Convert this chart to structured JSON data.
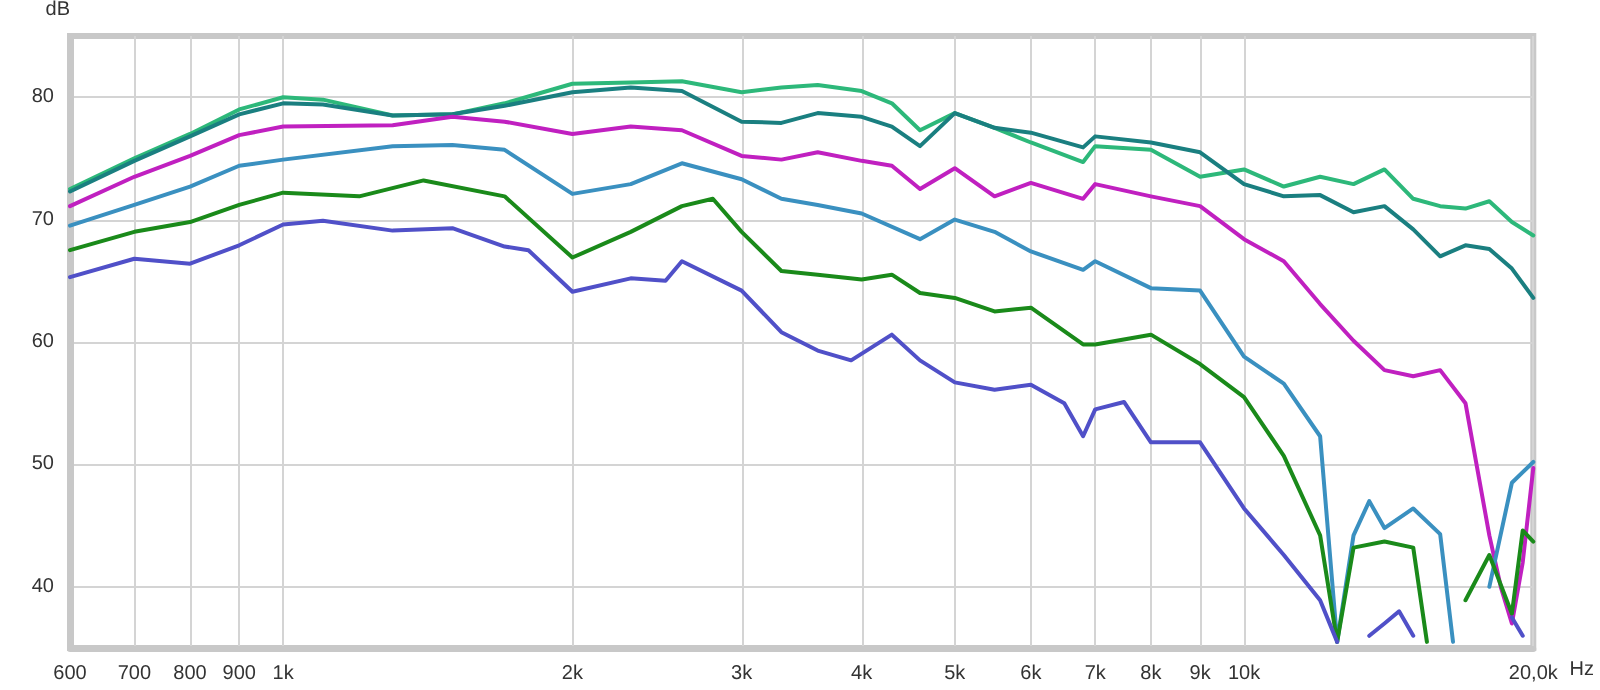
{
  "chart_data": {
    "type": "line",
    "ylabel": "dB",
    "xlabel": "Hz",
    "log": "x",
    "grid": true,
    "marker": "none",
    "line_style": "solid",
    "xlim": [
      600,
      20000
    ],
    "ylim": [
      35,
      85
    ],
    "xticks": [
      600,
      700,
      800,
      900,
      {
        "value": 1000,
        "label": "1k"
      },
      {
        "value": 2000,
        "label": "2k"
      },
      {
        "value": 3000,
        "label": "3k"
      },
      {
        "value": 4000,
        "label": "4k"
      },
      {
        "value": 5000,
        "label": "5k"
      },
      {
        "value": 6000,
        "label": "6k"
      },
      {
        "value": 7000,
        "label": "7k"
      },
      {
        "value": 8000,
        "label": "8k"
      },
      {
        "value": 9000,
        "label": "9k"
      },
      {
        "value": 10000,
        "label": "10k"
      },
      {
        "value": 20000,
        "label": "20,0k"
      }
    ],
    "yticks": [
      40,
      50,
      60,
      70,
      80
    ],
    "series": [
      {
        "color": "#2db87a",
        "x": [
          600,
          700,
          800,
          900,
          1000,
          1100,
          1300,
          1500,
          1700,
          2000,
          2300,
          2600,
          3000,
          3300,
          3600,
          4000,
          4300,
          4600,
          5000,
          5500,
          6000,
          6800,
          7000,
          8000,
          9000,
          10000,
          11000,
          12000,
          13000,
          14000,
          15000,
          16000,
          17000,
          18000,
          19000,
          20000
        ],
        "values": [
          72.5,
          75,
          77,
          79,
          80,
          79.8,
          78.5,
          78.6,
          79.5,
          81.1,
          81.2,
          81.3,
          80.4,
          80.8,
          81,
          80.5,
          79.5,
          77.3,
          78.7,
          77.5,
          76.3,
          74.7,
          76,
          75.7,
          73.5,
          74.1,
          72.7,
          73.5,
          72.9,
          74.1,
          71.7,
          71.1,
          70.9,
          71.5,
          69.8,
          68.7
        ]
      },
      {
        "color": "#1a7f80",
        "x": [
          600,
          700,
          800,
          900,
          1000,
          1100,
          1300,
          1500,
          1700,
          2000,
          2300,
          2600,
          3000,
          3300,
          3600,
          4000,
          4300,
          4600,
          5000,
          5500,
          6000,
          6800,
          7000,
          8000,
          9000,
          10000,
          11000,
          12000,
          13000,
          14000,
          15000,
          16000,
          17000,
          18000,
          19000,
          20000
        ],
        "values": [
          72.3,
          74.8,
          76.8,
          78.6,
          79.5,
          79.4,
          78.5,
          78.6,
          79.3,
          80.4,
          80.8,
          80.5,
          78,
          77.9,
          78.7,
          78.4,
          77.6,
          76,
          78.7,
          77.5,
          77.1,
          75.9,
          76.8,
          76.3,
          75.5,
          72.9,
          71.9,
          72,
          70.6,
          71.1,
          69.2,
          67,
          67.9,
          67.6,
          66,
          63.6
        ]
      },
      {
        "color": "#c020c0",
        "x": [
          600,
          700,
          800,
          900,
          1000,
          1300,
          1500,
          1700,
          2000,
          2300,
          2600,
          3000,
          3300,
          3600,
          4000,
          4300,
          4600,
          5000,
          5500,
          6000,
          6800,
          7000,
          8000,
          9000,
          10000,
          11000,
          12000,
          13000,
          14000,
          15000,
          16000,
          17000,
          18000,
          18500,
          19000,
          19500,
          20000
        ],
        "values": [
          71.1,
          73.5,
          75.2,
          76.9,
          77.6,
          77.7,
          78.4,
          78,
          77,
          77.6,
          77.3,
          75.2,
          74.9,
          75.5,
          74.8,
          74.4,
          72.5,
          74.2,
          71.9,
          73,
          71.7,
          72.9,
          71.9,
          71.1,
          68.4,
          66.6,
          63.1,
          60.1,
          57.7,
          57.2,
          57.7,
          55,
          44.2,
          40,
          37,
          42,
          49.7
        ]
      },
      {
        "color": "#3a90c0",
        "x": [
          600,
          700,
          800,
          900,
          1000,
          1300,
          1500,
          1700,
          2000,
          2300,
          2600,
          3000,
          3300,
          3600,
          4000,
          4600,
          5000,
          5500,
          6000,
          6800,
          7000,
          8000,
          9000,
          10000,
          11000,
          12000,
          12500,
          13000,
          13500,
          14000,
          15000,
          16000,
          16500,
          17500,
          18000,
          19000,
          20000
        ],
        "values": [
          69.5,
          71.2,
          72.7,
          74.4,
          74.9,
          76,
          76.1,
          75.7,
          72.1,
          72.9,
          74.6,
          73.3,
          71.7,
          71.2,
          70.5,
          68.4,
          70,
          69,
          67.4,
          65.9,
          66.6,
          64.4,
          64.2,
          58.8,
          56.6,
          52.3,
          35.5,
          44.2,
          47,
          44.8,
          46.4,
          44.3,
          35.5,
          null,
          40,
          48.5,
          50.2
        ]
      },
      {
        "color": "#1a8a1a",
        "x": [
          600,
          700,
          800,
          900,
          1000,
          1200,
          1400,
          1700,
          2000,
          2300,
          2600,
          2800,
          3000,
          3300,
          3600,
          4000,
          4300,
          4600,
          5000,
          5500,
          6000,
          6800,
          7000,
          8000,
          9000,
          10000,
          11000,
          12000,
          12500,
          13000,
          14000,
          15000,
          15500,
          16500,
          17000,
          18000,
          19000,
          19500,
          20000
        ],
        "values": [
          67.5,
          69,
          69.8,
          71.2,
          72.2,
          71.9,
          73.2,
          71.9,
          66.9,
          69,
          71.1,
          71.7,
          69,
          65.8,
          65.5,
          65.1,
          65.5,
          64,
          63.6,
          62.5,
          62.8,
          59.8,
          59.8,
          60.6,
          58.2,
          55.5,
          50.7,
          44.2,
          35.5,
          43.2,
          43.7,
          43.2,
          35.5,
          null,
          38.9,
          42.6,
          37.8,
          44.6,
          43.7
        ]
      },
      {
        "color": "#5050c8",
        "x": [
          600,
          700,
          800,
          900,
          1000,
          1100,
          1300,
          1500,
          1700,
          1800,
          2000,
          2300,
          2500,
          2600,
          3000,
          3300,
          3600,
          3900,
          4300,
          4600,
          5000,
          5500,
          6000,
          6500,
          6800,
          7000,
          7500,
          8000,
          9000,
          10000,
          11000,
          12000,
          12500,
          13000,
          13500,
          14000,
          14500,
          15000,
          15500,
          18500,
          19000,
          19500
        ],
        "values": [
          65.3,
          66.8,
          66.4,
          67.9,
          69.6,
          69.9,
          69.1,
          69.3,
          67.8,
          67.5,
          64.1,
          65.2,
          65,
          66.6,
          64.2,
          60.8,
          59.3,
          58.5,
          60.6,
          58.5,
          56.7,
          56.1,
          56.5,
          55,
          52.3,
          54.5,
          55.1,
          51.8,
          51.8,
          46.4,
          42.6,
          38.9,
          35.5,
          null,
          36,
          37,
          38,
          36,
          null,
          null,
          37.5,
          36
        ]
      }
    ]
  }
}
